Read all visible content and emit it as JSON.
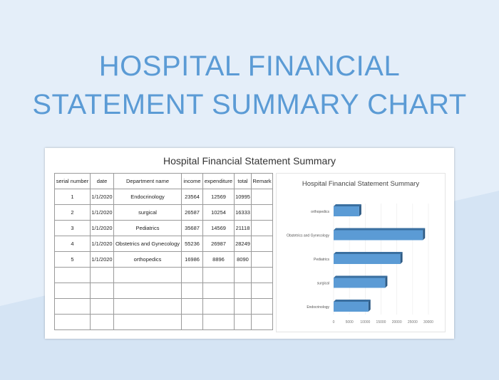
{
  "page": {
    "heading_line1": "HOSPITAL FINANCIAL",
    "heading_line2": "STATEMENT SUMMARY CHART"
  },
  "sheet": {
    "title": "Hospital Financial Statement Summary",
    "table": {
      "headers": [
        "serial number",
        "date",
        "Department name",
        "income",
        "expenditure",
        "total",
        "Remark"
      ],
      "rows": [
        [
          "1",
          "1/1/2020",
          "Endocrinology",
          "23564",
          "12569",
          "10995",
          ""
        ],
        [
          "2",
          "1/1/2020",
          "surgical",
          "26587",
          "10254",
          "16333",
          ""
        ],
        [
          "3",
          "1/1/2020",
          "Pediatrics",
          "35687",
          "14569",
          "21118",
          ""
        ],
        [
          "4",
          "1/1/2020",
          "Obstetrics and Gynecology",
          "55236",
          "26987",
          "28249",
          ""
        ],
        [
          "5",
          "1/1/2020",
          "orthopedics",
          "16986",
          "8896",
          "8090",
          ""
        ],
        [
          "",
          "",
          "",
          "",
          "",
          "",
          ""
        ],
        [
          "",
          "",
          "",
          "",
          "",
          "",
          ""
        ],
        [
          "",
          "",
          "",
          "",
          "",
          "",
          ""
        ],
        [
          "",
          "",
          "",
          "",
          "",
          "",
          ""
        ]
      ]
    }
  },
  "chart_data": {
    "type": "bar",
    "orientation": "horizontal",
    "title": "Hospital Financial Statement Summary",
    "categories": [
      "Endocrinology",
      "surgical",
      "Pediatrics",
      "Obstetrics and Gynecology",
      "orthopedics"
    ],
    "values": [
      10995,
      16333,
      21118,
      28249,
      8090
    ],
    "xlim": [
      0,
      30000
    ],
    "xticks": [
      0,
      5000,
      10000,
      15000,
      20000,
      25000,
      30000
    ],
    "grid": "vertical",
    "legend": "none",
    "bar_color": "#5b9bd5"
  }
}
